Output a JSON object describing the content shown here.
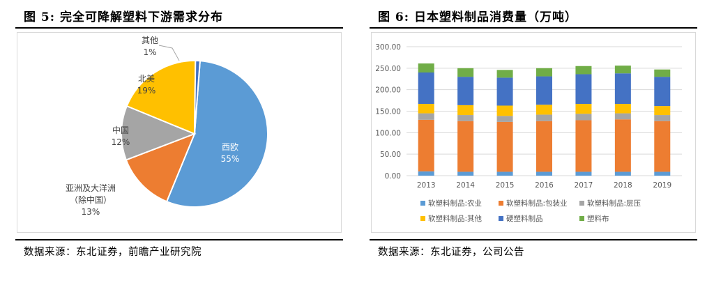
{
  "left": {
    "title": "图  5: 完全可降解塑料下游需求分布",
    "source": "数据来源：东北证券，前瞻产业研究院",
    "chart_data": {
      "type": "pie",
      "slices": [
        {
          "label": "西欧",
          "pct_label": "55%",
          "value": 55,
          "color": "#5b9bd5"
        },
        {
          "label": "亚洲及大洋洲",
          "sublabel": "（除中国）",
          "pct_label": "13%",
          "value": 13,
          "color": "#ed7d31"
        },
        {
          "label": "中国",
          "pct_label": "12%",
          "value": 12,
          "color": "#a5a5a5"
        },
        {
          "label": "北美",
          "pct_label": "19%",
          "value": 19,
          "color": "#ffc000"
        },
        {
          "label": "其他",
          "pct_label": "1%",
          "value": 1,
          "color": "#4472c4"
        }
      ]
    }
  },
  "right": {
    "title": "图  6: 日本塑料制品消费量（万吨）",
    "source": "数据来源：东北证券，公司公告",
    "chart_data": {
      "type": "bar",
      "stacked": true,
      "categories": [
        "2013",
        "2014",
        "2015",
        "2016",
        "2017",
        "2018",
        "2019"
      ],
      "y_ticks": [
        "0.00",
        "50.00",
        "100.00",
        "150.00",
        "200.00",
        "250.00",
        "300.00"
      ],
      "ylim": [
        0,
        300
      ],
      "grid": true,
      "legend_position": "bottom",
      "series": [
        {
          "name": "软塑料制品:农业",
          "color": "#5b9bd5",
          "values": [
            10,
            9,
            9,
            9,
            9,
            9,
            9
          ]
        },
        {
          "name": "软塑料制品:包装业",
          "color": "#ed7d31",
          "values": [
            120,
            118,
            116,
            118,
            120,
            122,
            118
          ]
        },
        {
          "name": "软塑料制品:层压",
          "color": "#a5a5a5",
          "values": [
            15,
            14,
            14,
            15,
            15,
            14,
            14
          ]
        },
        {
          "name": "软塑料制品:其他",
          "color": "#ffc000",
          "values": [
            22,
            23,
            24,
            23,
            23,
            22,
            21
          ]
        },
        {
          "name": "硬塑料制品",
          "color": "#4472c4",
          "values": [
            73,
            66,
            65,
            66,
            69,
            71,
            68
          ]
        },
        {
          "name": "塑料布",
          "color": "#70ad47",
          "values": [
            21,
            20,
            18,
            19,
            19,
            18,
            17
          ]
        }
      ]
    }
  }
}
